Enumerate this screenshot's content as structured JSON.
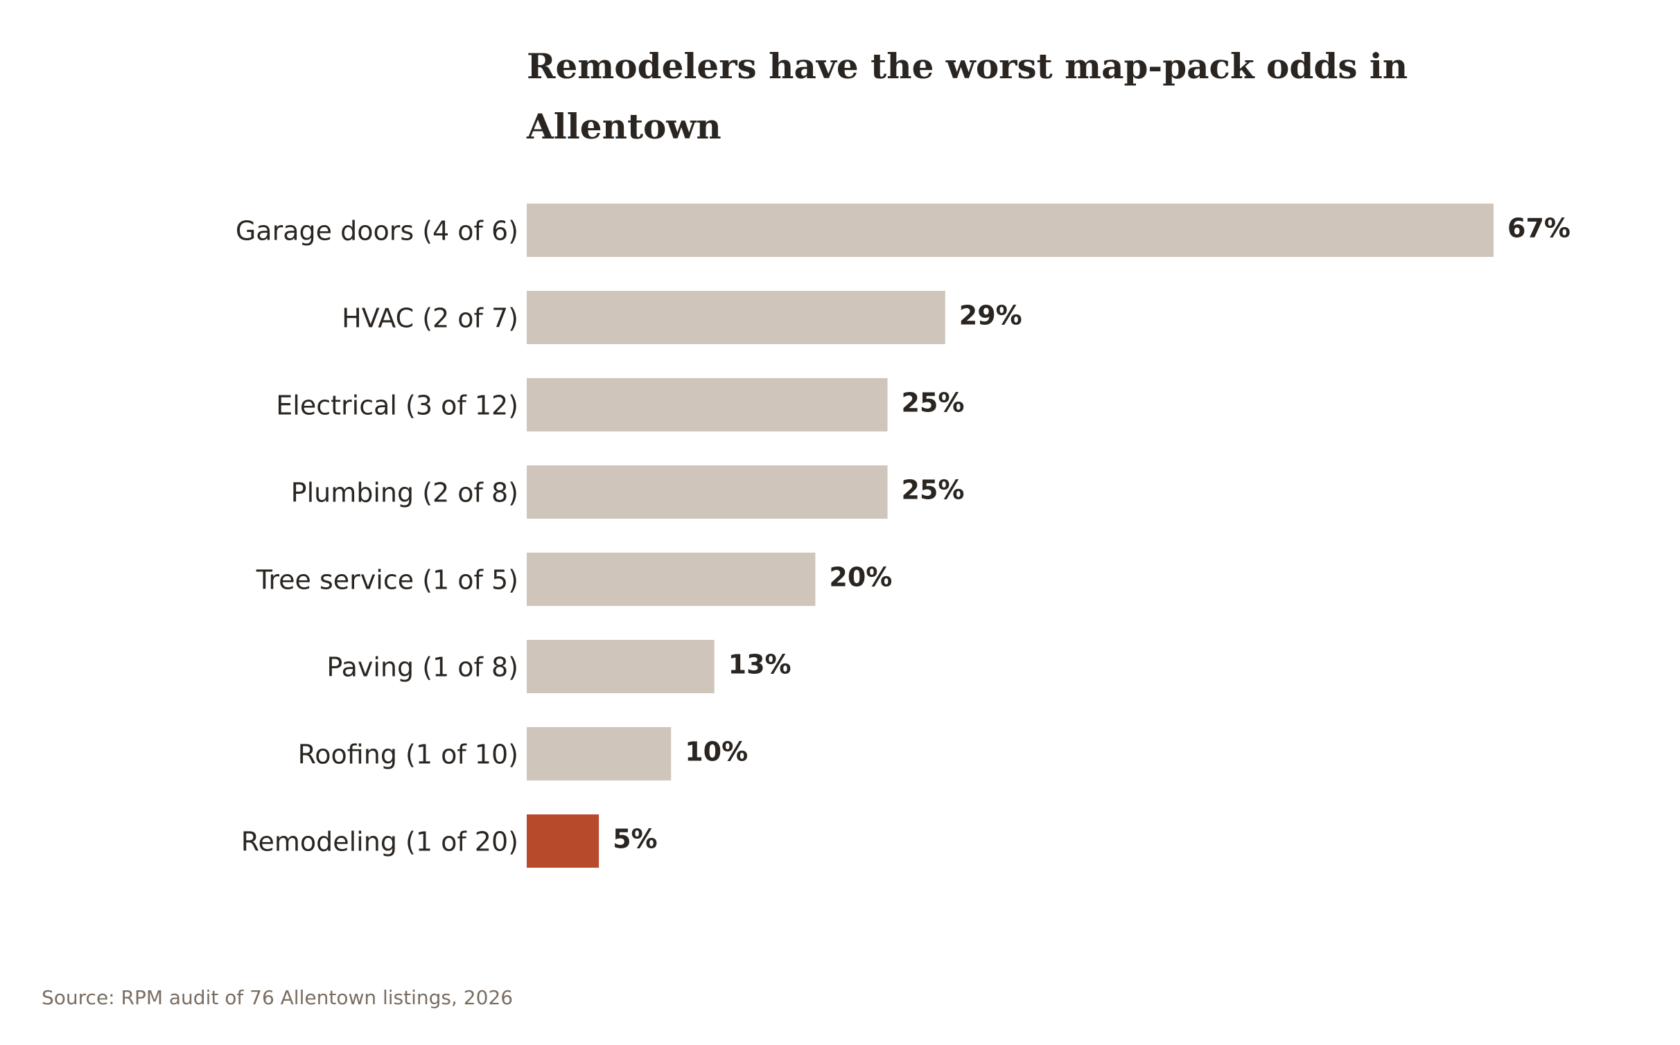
{
  "chart_data": {
    "type": "bar",
    "orientation": "horizontal",
    "title_lines": [
      "Remodelers have the worst map-pack odds in",
      "Allentown"
    ],
    "categories": [
      "Garage doors (4 of 6)",
      "HVAC (2 of 7)",
      "Electrical (3 of 12)",
      "Plumbing (2 of 8)",
      "Tree service (1 of 5)",
      "Paving (1 of 8)",
      "Roofing (1 of 10)",
      "Remodeling (1 of 20)"
    ],
    "values": [
      67,
      29,
      25,
      25,
      20,
      13,
      10,
      5
    ],
    "value_labels": [
      "67%",
      "29%",
      "25%",
      "25%",
      "20%",
      "13%",
      "10%",
      "5%"
    ],
    "highlight_index": 7,
    "xlim": [
      0,
      67
    ],
    "grid": false,
    "xlabel": "",
    "ylabel": ""
  },
  "colors": {
    "bar": "#cfc5ba",
    "highlight": "#b84a2c",
    "text": "#2a2520",
    "source": "#7a6d62"
  },
  "source": "Source: RPM audit of 76 Allentown listings, 2026"
}
